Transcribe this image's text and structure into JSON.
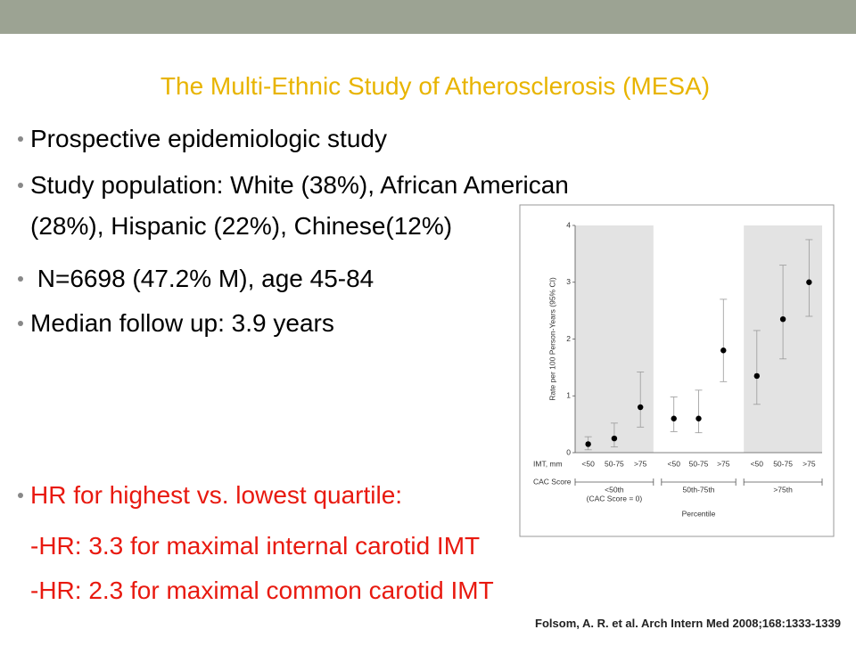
{
  "slide": {
    "title": "The Multi-Ethnic Study of Atherosclerosis (MESA)",
    "bullets": [
      {
        "lines": [
          "Prospective epidemiologic study"
        ]
      },
      {
        "lines": [
          "Study population: White (38%), African American",
          "(28%), Hispanic (22%), Chinese(12%)"
        ]
      },
      {
        "lines": [
          " N=6698 (47.2% M), age 45-84"
        ]
      },
      {
        "lines": [
          "Median follow up: 3.9 years"
        ]
      }
    ],
    "highlight_bullet": "HR for highest vs. lowest quartile:",
    "highlight_lines": [
      "-HR: 3.3 for maximal internal carotid IMT",
      "-HR: 2.3 for maximal common carotid IMT"
    ],
    "highlight_color": "#e8190f",
    "title_color": "#e8b400",
    "citation": "Folsom, A. R. et al. Arch Intern Med 2008;168:1333-1339"
  },
  "chart_data": {
    "type": "dot",
    "ylabel": "Rate per 100 Person-Years (95% CI)",
    "xlabel": "Percentile",
    "category_row_label": "IMT, mm",
    "group_row_label": "CAC Score",
    "categories": [
      "<50",
      "50-75",
      ">75",
      "<50",
      "50-75",
      ">75",
      "<50",
      "50-75",
      ">75"
    ],
    "groups": [
      {
        "label": "<50th",
        "sublabel": "(CAC Score = 0)"
      },
      {
        "label": "50th-75th"
      },
      {
        "label": ">75th"
      }
    ],
    "values": [
      0.15,
      0.25,
      0.8,
      0.6,
      0.6,
      1.8,
      1.35,
      2.35,
      3.0
    ],
    "ci_low": [
      0.05,
      0.1,
      0.45,
      0.37,
      0.35,
      1.25,
      0.85,
      1.65,
      2.4
    ],
    "ci_high": [
      0.28,
      0.52,
      1.42,
      0.98,
      1.1,
      2.7,
      2.15,
      3.3,
      3.75
    ],
    "color": "#000000",
    "ylim": [
      0,
      4
    ],
    "yticks": [
      0,
      1,
      2,
      3,
      4
    ]
  }
}
